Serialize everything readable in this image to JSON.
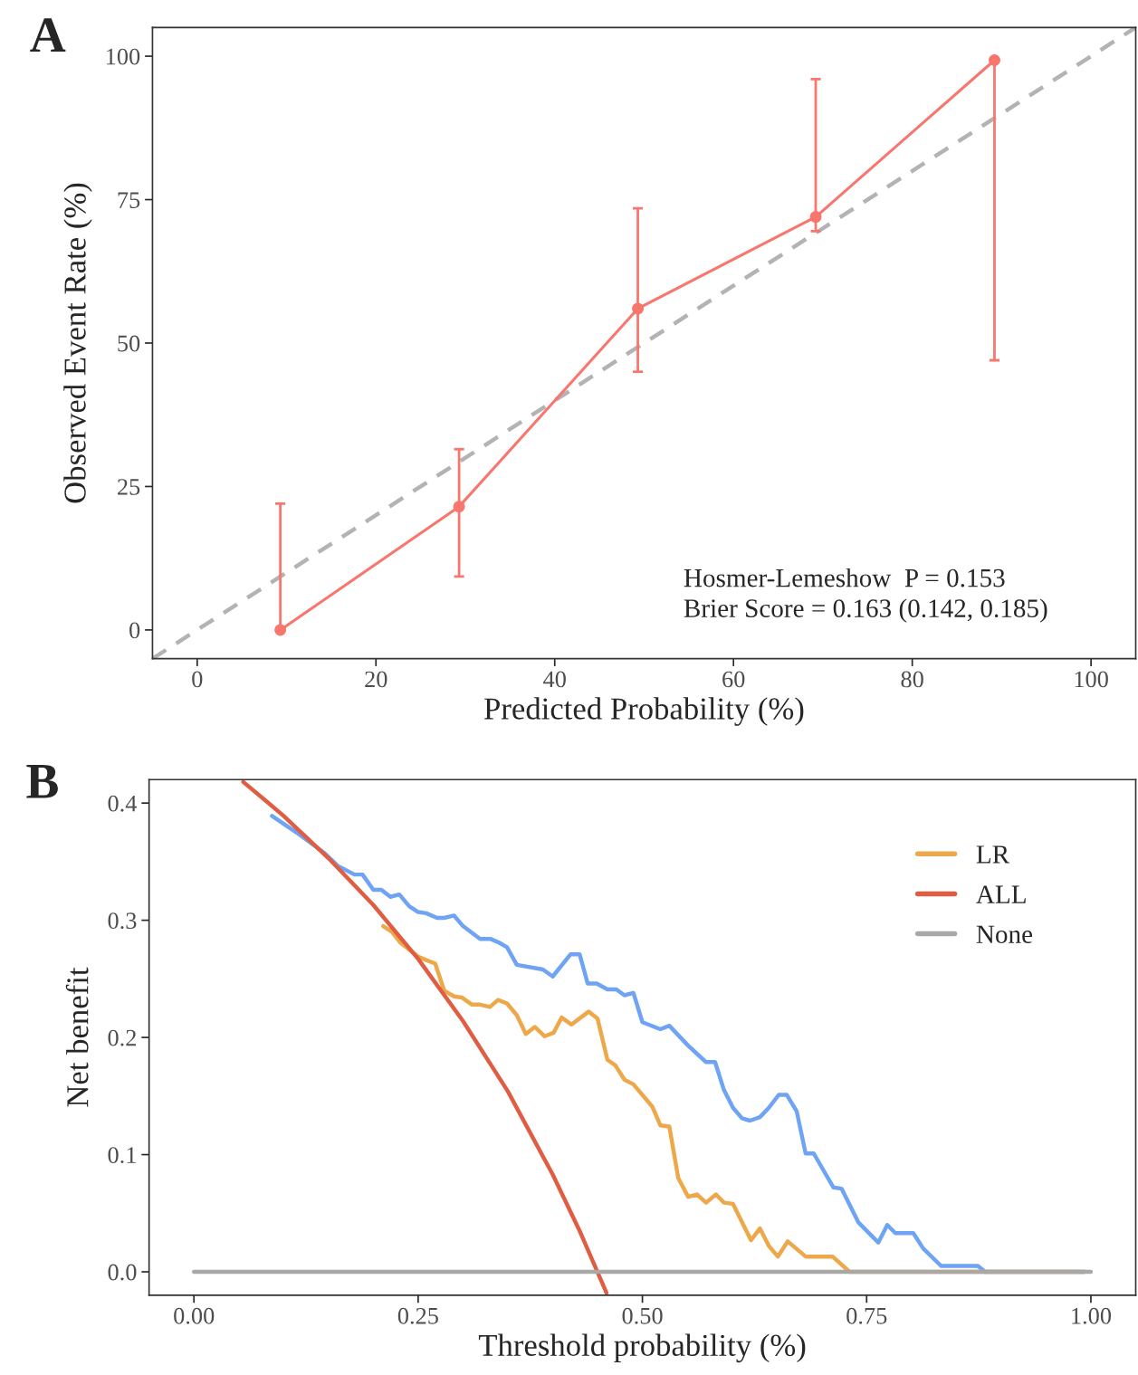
{
  "chart_data": [
    {
      "type": "line",
      "title": "A",
      "xlabel": "Predicted Probability (%)",
      "ylabel": "Observed Event Rate (%)",
      "xlim": [
        -5,
        105
      ],
      "ylim": [
        -5,
        105
      ],
      "xticks": [
        0,
        20,
        40,
        60,
        80,
        100
      ],
      "yticks": [
        0,
        25,
        50,
        75,
        100
      ],
      "grid": false,
      "legend": false,
      "series": [
        {
          "color": "#b3b3b3",
          "line_style": "dashed",
          "marker": "none",
          "x": [
            -5,
            105
          ],
          "values": [
            -5,
            105
          ]
        },
        {
          "color": "#f8766d",
          "line_style": "solid",
          "marker": "circle",
          "x": [
            9.3,
            29.3,
            49.3,
            69.2,
            89.2
          ],
          "values": [
            0,
            21.5,
            56,
            72,
            99.3
          ],
          "errors": [
            [
              0,
              22
            ],
            [
              9.3,
              31.5
            ],
            [
              45,
              73.5
            ],
            [
              69.5,
              96
            ],
            [
              47,
              99.5
            ]
          ]
        }
      ],
      "annotations": [
        "Hosmer-Lemeshow  P = 0.153\nBrier Score = 0.163 (0.142, 0.185)"
      ]
    },
    {
      "type": "line",
      "title": "B",
      "xlabel": "Threshold probability (%)",
      "ylabel": "Net benefit",
      "xlim": [
        -0.05,
        1.05
      ],
      "ylim": [
        -0.02,
        0.42
      ],
      "xticks": [
        {
          "value": 0,
          "label": "0.00"
        },
        {
          "value": 0.25,
          "label": "0.25"
        },
        {
          "value": 0.5,
          "label": "0.50"
        },
        {
          "value": 0.75,
          "label": "0.75"
        },
        {
          "value": 1,
          "label": "1.00"
        }
      ],
      "yticks": [
        {
          "value": 0,
          "label": "0.0"
        },
        {
          "value": 0.1,
          "label": "0.1"
        },
        {
          "value": 0.2,
          "label": "0.2"
        },
        {
          "value": 0.3,
          "label": "0.3"
        },
        {
          "value": 0.4,
          "label": "0.4"
        }
      ],
      "grid": false,
      "legend": "top right",
      "series": [
        {
          "color": "#6fa3f4",
          "line_style": "solid",
          "marker": "none",
          "x": [
            0.087,
            0.118,
            0.146,
            0.161,
            0.179,
            0.188,
            0.2,
            0.209,
            0.219,
            0.229,
            0.24,
            0.25,
            0.259,
            0.271,
            0.279,
            0.29,
            0.3,
            0.319,
            0.331,
            0.34,
            0.349,
            0.36,
            0.389,
            0.4,
            0.42,
            0.43,
            0.439,
            0.449,
            0.461,
            0.471,
            0.48,
            0.49,
            0.5,
            0.52,
            0.53,
            0.551,
            0.571,
            0.581,
            0.591,
            0.601,
            0.611,
            0.62,
            0.631,
            0.641,
            0.652,
            0.661,
            0.672,
            0.682,
            0.691,
            0.713,
            0.722,
            0.741,
            0.763,
            0.773,
            0.782,
            0.802,
            0.813,
            0.833,
            0.874,
            0.882,
            0.993
          ],
          "values": [
            0.389,
            0.373,
            0.357,
            0.346,
            0.339,
            0.339,
            0.326,
            0.326,
            0.32,
            0.322,
            0.312,
            0.307,
            0.306,
            0.302,
            0.302,
            0.304,
            0.295,
            0.284,
            0.284,
            0.281,
            0.277,
            0.262,
            0.258,
            0.252,
            0.271,
            0.271,
            0.246,
            0.246,
            0.241,
            0.241,
            0.236,
            0.238,
            0.213,
            0.207,
            0.21,
            0.193,
            0.179,
            0.179,
            0.155,
            0.14,
            0.131,
            0.129,
            0.132,
            0.14,
            0.151,
            0.151,
            0.137,
            0.101,
            0.101,
            0.072,
            0.071,
            0.042,
            0.025,
            0.04,
            0.033,
            0.033,
            0.02,
            0.005,
            0.005,
            0,
            0
          ]
        },
        {
          "color": "#eda84a",
          "name": "LR",
          "line_style": "solid",
          "marker": "none",
          "x": [
            0.211,
            0.221,
            0.23,
            0.25,
            0.259,
            0.269,
            0.279,
            0.29,
            0.299,
            0.31,
            0.319,
            0.33,
            0.339,
            0.349,
            0.36,
            0.37,
            0.38,
            0.391,
            0.401,
            0.41,
            0.421,
            0.44,
            0.45,
            0.461,
            0.47,
            0.48,
            0.49,
            0.511,
            0.52,
            0.53,
            0.54,
            0.551,
            0.561,
            0.571,
            0.582,
            0.591,
            0.601,
            0.621,
            0.631,
            0.641,
            0.651,
            0.662,
            0.682,
            0.712,
            0.731,
            0.993
          ],
          "values": [
            0.295,
            0.29,
            0.281,
            0.269,
            0.266,
            0.263,
            0.24,
            0.235,
            0.234,
            0.228,
            0.228,
            0.226,
            0.232,
            0.229,
            0.219,
            0.203,
            0.209,
            0.201,
            0.204,
            0.217,
            0.211,
            0.222,
            0.216,
            0.181,
            0.176,
            0.164,
            0.16,
            0.141,
            0.125,
            0.124,
            0.08,
            0.064,
            0.066,
            0.059,
            0.066,
            0.059,
            0.058,
            0.027,
            0.037,
            0.022,
            0.013,
            0.026,
            0.013,
            0.013,
            0,
            0
          ]
        },
        {
          "color": "#e05d44",
          "name": "ALL",
          "line_style": "solid",
          "marker": "none",
          "x": [
            0.055,
            0.08,
            0.1,
            0.15,
            0.2,
            0.25,
            0.3,
            0.35,
            0.4,
            0.43,
            0.46
          ],
          "values": [
            0.418,
            0.402,
            0.389,
            0.353,
            0.313,
            0.267,
            0.214,
            0.154,
            0.083,
            0.035,
            -0.018
          ]
        },
        {
          "color": "#a8a8a8",
          "name": "None",
          "line_style": "solid",
          "marker": "none",
          "x": [
            0,
            1
          ],
          "values": [
            0,
            0
          ]
        }
      ]
    }
  ]
}
